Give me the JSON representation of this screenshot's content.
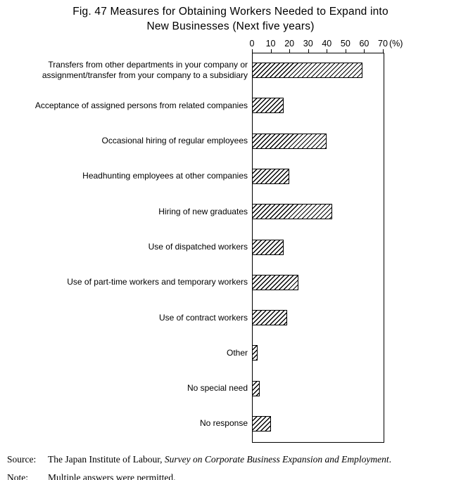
{
  "header": {
    "title_line1": "Fig. 47  Measures for Obtaining Workers Needed to Expand into",
    "title_line2": "New Businesses (Next five years)"
  },
  "chart_data": {
    "type": "bar",
    "orientation": "horizontal",
    "title": "Fig. 47 Measures for Obtaining Workers Needed to Expand into New Businesses (Next five years)",
    "categories": [
      "Transfers from other departments in your company or assignment/transfer from your company to a subsidiary",
      "Acceptance of assigned persons from related companies",
      "Occasional hiring of regular employees",
      "Headhunting employees at other companies",
      "Hiring of new graduates",
      "Use of dispatched workers",
      "Use of part-time workers and temporary workers",
      "Use of contract workers",
      "Other",
      "No special need",
      "No response"
    ],
    "values": [
      59,
      17,
      40,
      20,
      43,
      17,
      25,
      19,
      3,
      4,
      10
    ],
    "xlim": [
      0,
      70
    ],
    "x_ticks": [
      0,
      10,
      20,
      30,
      40,
      50,
      60,
      70
    ],
    "axis_unit": "(%)",
    "bar_fill": "diagonal-hatch",
    "bar_border_color": "#000000",
    "plot_border_color": "#000000",
    "background": "#ffffff",
    "grid": false,
    "legend": false
  },
  "footer": {
    "source_label": "Source:",
    "source_text": "The Japan Institute of Labour, ",
    "source_italic": "Survey on Corporate Business Expansion and Employment",
    "source_suffix": ".",
    "note_label": "Note:",
    "note_text": "Multiple answers were permitted."
  }
}
